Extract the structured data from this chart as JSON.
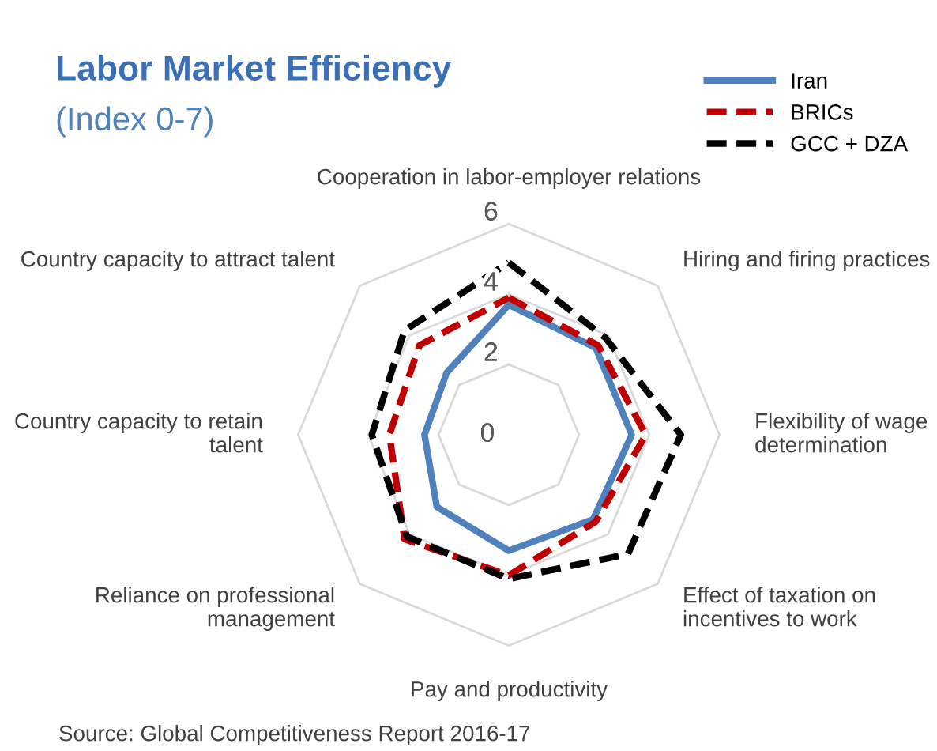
{
  "chart_data": {
    "type": "radar",
    "title": "Labor Market Efficiency",
    "subtitle": "(Index 0-7)",
    "categories": [
      "Cooperation in labor-employer relations",
      "Hiring and firing practices",
      "Flexibility of wage determination",
      "Effect of taxation on incentives to work",
      "Pay and productivity",
      "Reliance on professional management",
      "Country capacity to retain talent",
      "Country capacity to attract talent"
    ],
    "series": [
      {
        "name": "Iran",
        "color": "#4f81bd",
        "line_style": "solid",
        "values": [
          3.7,
          3.5,
          3.5,
          3.4,
          3.3,
          2.9,
          2.4,
          2.5
        ]
      },
      {
        "name": "BRICs",
        "color": "#c00000",
        "line_style": "dashed",
        "values": [
          3.9,
          3.6,
          3.9,
          3.5,
          4.0,
          4.2,
          3.4,
          3.6
        ]
      },
      {
        "name": "GCC + DZA",
        "color": "#000000",
        "line_style": "dashed",
        "values": [
          4.9,
          3.9,
          4.9,
          4.8,
          4.1,
          4.1,
          3.9,
          4.2
        ]
      }
    ],
    "ylim": [
      0,
      6
    ],
    "yticks": [
      0,
      2,
      4,
      6
    ],
    "grid": true,
    "legend": "top right",
    "marker": "none",
    "annotations": [
      "Source: Global Competitiveness Report 2016-17"
    ]
  }
}
